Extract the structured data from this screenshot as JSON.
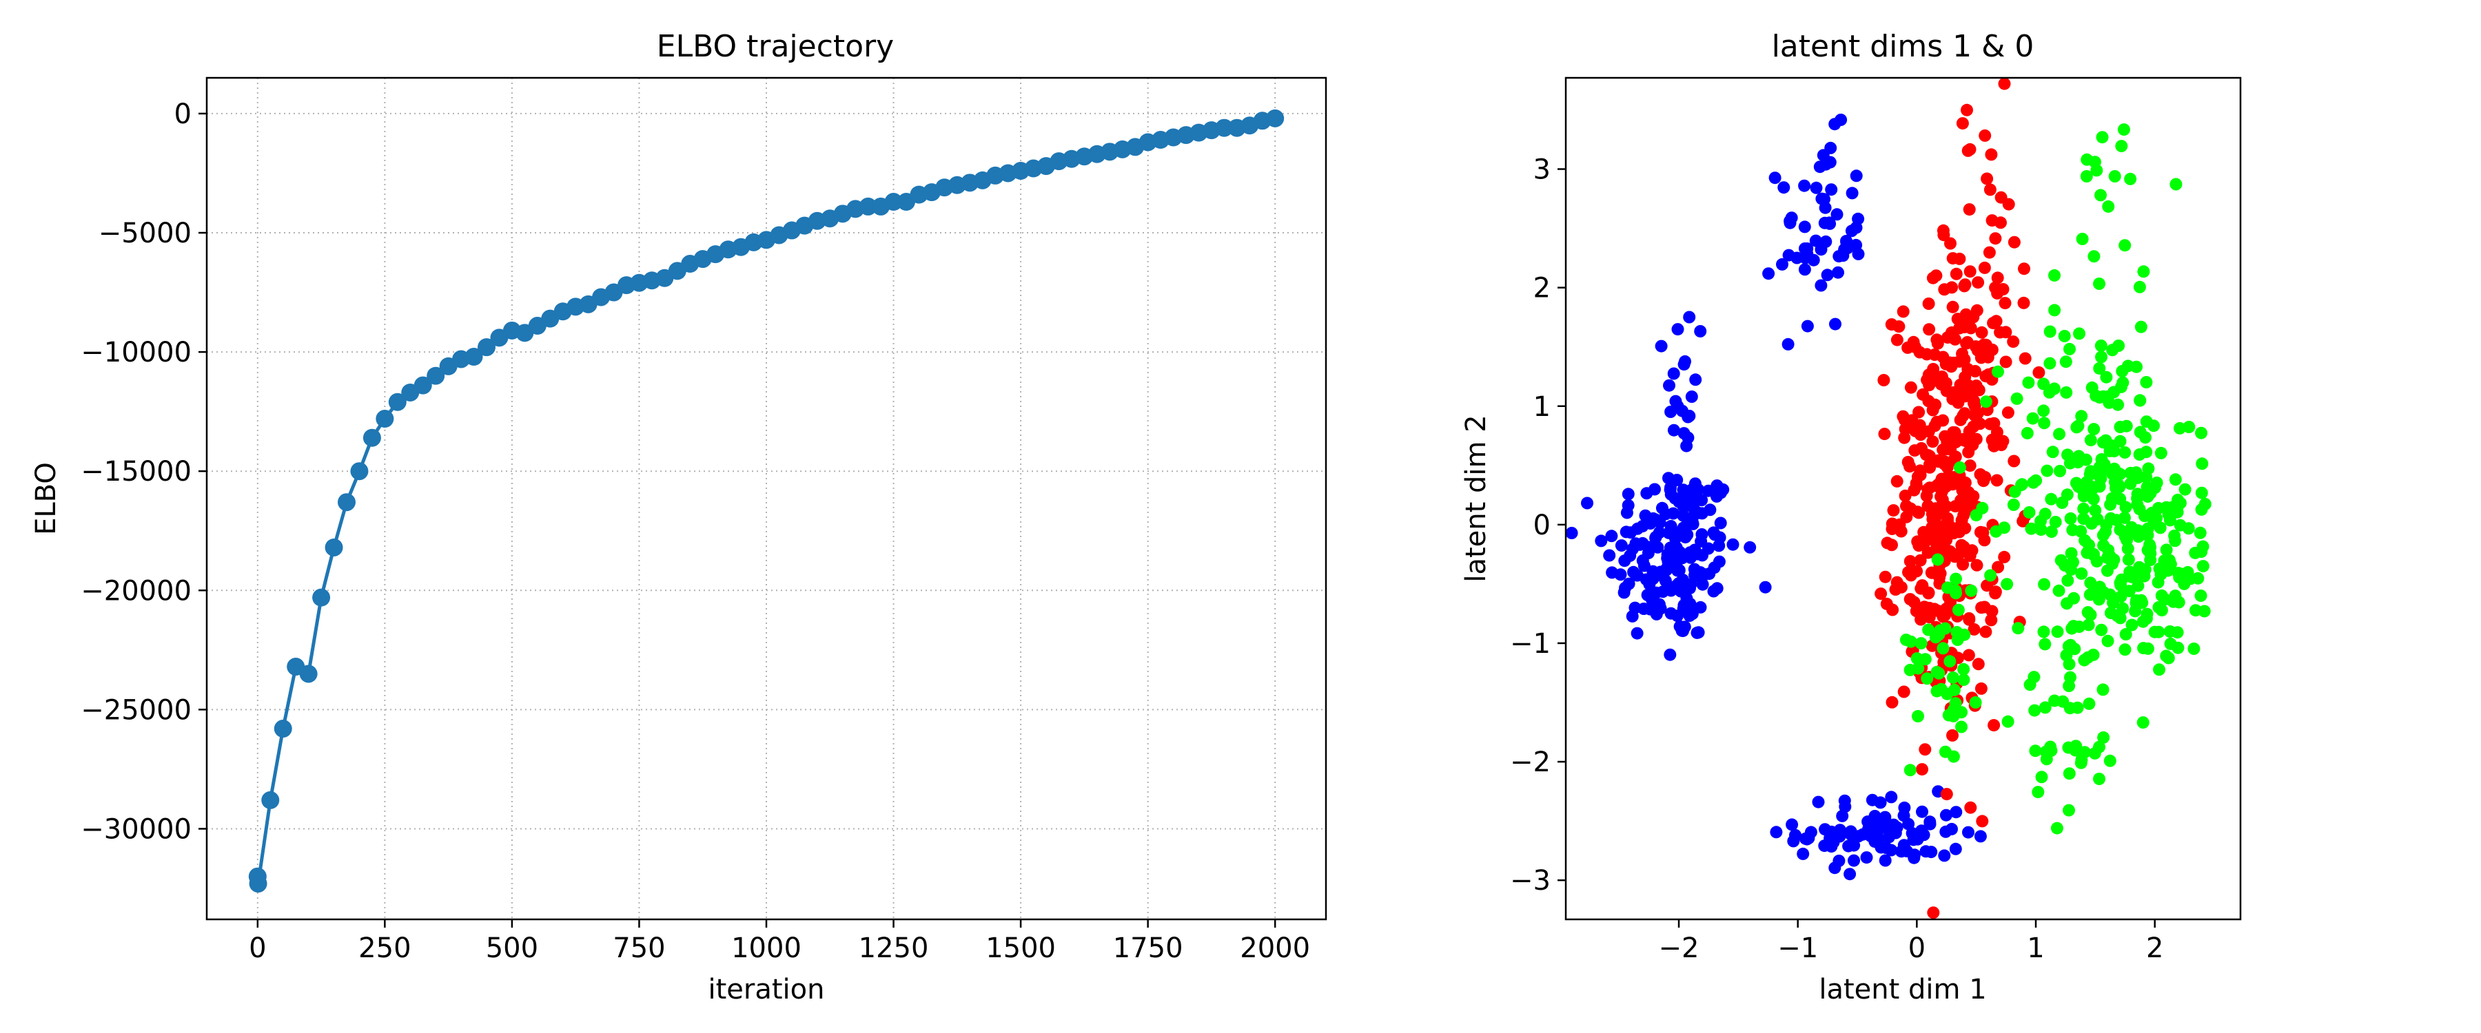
{
  "chart_data": [
    {
      "type": "line",
      "title": "ELBO trajectory",
      "xlabel": "iteration",
      "ylabel": "ELBO",
      "xlim": [
        -100,
        2100
      ],
      "ylim": [
        -33800,
        1500
      ],
      "xticks": [
        0,
        250,
        500,
        750,
        1000,
        1250,
        1500,
        1750,
        2000
      ],
      "xtick_labels": [
        "0",
        "250",
        "500",
        "750",
        "1000",
        "1250",
        "1500",
        "1750",
        "2000"
      ],
      "yticks": [
        0,
        -5000,
        -10000,
        -15000,
        -20000,
        -25000,
        -30000
      ],
      "ytick_labels": [
        "0",
        "−5000",
        "−10000",
        "−15000",
        "−20000",
        "−25000",
        "−30000"
      ],
      "grid": true,
      "grid_style": "dotted",
      "markers": true,
      "color": "#1f77b4",
      "series": [
        {
          "x": [
            0,
            1,
            25,
            50,
            75,
            100,
            125,
            150,
            175,
            200,
            225,
            250,
            275,
            300,
            325,
            350,
            375,
            400,
            425,
            450,
            475,
            500,
            525,
            550,
            575,
            600,
            625,
            650,
            675,
            700,
            725,
            750,
            775,
            800,
            825,
            850,
            875,
            900,
            925,
            950,
            975,
            1000,
            1025,
            1050,
            1075,
            1100,
            1125,
            1150,
            1175,
            1200,
            1225,
            1250,
            1275,
            1300,
            1325,
            1350,
            1375,
            1400,
            1425,
            1450,
            1475,
            1500,
            1525,
            1550,
            1575,
            1600,
            1625,
            1650,
            1675,
            1700,
            1725,
            1750,
            1775,
            1800,
            1825,
            1850,
            1875,
            1900,
            1925,
            1950,
            1975,
            2000
          ],
          "y": [
            -32000,
            -32300,
            -28800,
            -25800,
            -23200,
            -23500,
            -20300,
            -18200,
            -16300,
            -15000,
            -13600,
            -12800,
            -12100,
            -11700,
            -11400,
            -11000,
            -10600,
            -10300,
            -10200,
            -9800,
            -9400,
            -9100,
            -9200,
            -8900,
            -8600,
            -8300,
            -8100,
            -8000,
            -7700,
            -7500,
            -7200,
            -7100,
            -7000,
            -6900,
            -6600,
            -6300,
            -6100,
            -5900,
            -5700,
            -5600,
            -5400,
            -5300,
            -5100,
            -4900,
            -4700,
            -4500,
            -4400,
            -4200,
            -4000,
            -3900,
            -3900,
            -3700,
            -3700,
            -3400,
            -3300,
            -3100,
            -3000,
            -2900,
            -2800,
            -2600,
            -2500,
            -2400,
            -2300,
            -2200,
            -2000,
            -1900,
            -1800,
            -1700,
            -1600,
            -1500,
            -1400,
            -1200,
            -1100,
            -1000,
            -900,
            -800,
            -700,
            -600,
            -600,
            -500,
            -300,
            -200
          ]
        }
      ]
    },
    {
      "type": "scatter",
      "title": "latent dims 1 & 0",
      "xlabel": "latent dim 1",
      "ylabel": "latent dim 2",
      "xlim": [
        -2.95,
        2.72
      ],
      "ylim": [
        -3.33,
        3.77
      ],
      "xticks": [
        -2,
        -1,
        0,
        1,
        2
      ],
      "xtick_labels": [
        "−2",
        "−1",
        "0",
        "1",
        "2"
      ],
      "yticks": [
        -3,
        -2,
        -1,
        0,
        1,
        2,
        3
      ],
      "ytick_labels": [
        "−3",
        "−2",
        "−1",
        "0",
        "1",
        "2",
        "3"
      ],
      "grid": false,
      "clusters": [
        {
          "color": "#0000ff",
          "cx": -2.05,
          "cy": -0.25,
          "sx": 0.28,
          "sy": 0.38,
          "n": 170
        },
        {
          "color": "#0000ff",
          "cx": -1.95,
          "cy": 1.0,
          "sx": 0.08,
          "sy": 0.5,
          "n": 25
        },
        {
          "color": "#0000ff",
          "cx": -0.8,
          "cy": 2.45,
          "sx": 0.18,
          "sy": 0.4,
          "n": 55
        },
        {
          "color": "#0000ff",
          "cx": -0.3,
          "cy": -2.6,
          "sx": 0.35,
          "sy": 0.15,
          "n": 90
        },
        {
          "color": "#ff0000",
          "cx": 0.25,
          "cy": 0.2,
          "sx": 0.22,
          "sy": 0.9,
          "n": 360
        },
        {
          "color": "#ff0000",
          "cx": 0.55,
          "cy": 2.0,
          "sx": 0.25,
          "sy": 0.8,
          "n": 55
        },
        {
          "color": "#00ff00",
          "cx": 1.55,
          "cy": 0.3,
          "sx": 0.38,
          "sy": 0.75,
          "n": 230
        },
        {
          "color": "#00ff00",
          "cx": 2.0,
          "cy": -0.4,
          "sx": 0.3,
          "sy": 0.4,
          "n": 90
        },
        {
          "color": "#00ff00",
          "cx": 1.3,
          "cy": -1.6,
          "sx": 0.2,
          "sy": 0.45,
          "n": 45
        },
        {
          "color": "#00ff00",
          "cx": 1.6,
          "cy": 2.8,
          "sx": 0.12,
          "sy": 0.4,
          "n": 15
        },
        {
          "color": "#00ff00",
          "cx": 0.25,
          "cy": -1.0,
          "sx": 0.15,
          "sy": 0.45,
          "n": 45
        }
      ]
    }
  ]
}
